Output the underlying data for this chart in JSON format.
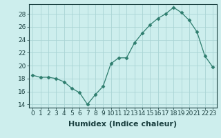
{
  "xlabel": "Humidex (Indice chaleur)",
  "ylabel": "",
  "x": [
    0,
    1,
    2,
    3,
    4,
    5,
    6,
    7,
    8,
    9,
    10,
    11,
    12,
    13,
    14,
    15,
    16,
    17,
    18,
    19,
    20,
    21,
    22,
    23
  ],
  "y": [
    18.5,
    18.2,
    18.2,
    18.0,
    17.5,
    16.5,
    15.8,
    14.0,
    15.5,
    16.8,
    20.3,
    21.2,
    21.2,
    23.5,
    25.0,
    26.3,
    27.3,
    28.0,
    29.0,
    28.2,
    27.0,
    25.2,
    21.5,
    19.8
  ],
  "line_color": "#2e7d6e",
  "marker": "D",
  "marker_size": 2.5,
  "bg_color": "#cdeeed",
  "grid_color": "#aad4d4",
  "ylim": [
    13.5,
    29.5
  ],
  "xlim": [
    -0.5,
    23.5
  ],
  "yticks": [
    14,
    16,
    18,
    20,
    22,
    24,
    26,
    28
  ],
  "xticks": [
    0,
    1,
    2,
    3,
    4,
    5,
    6,
    7,
    8,
    9,
    10,
    11,
    12,
    13,
    14,
    15,
    16,
    17,
    18,
    19,
    20,
    21,
    22,
    23
  ],
  "tick_fontsize": 6.5,
  "xlabel_fontsize": 8,
  "label_color": "#1a4040"
}
